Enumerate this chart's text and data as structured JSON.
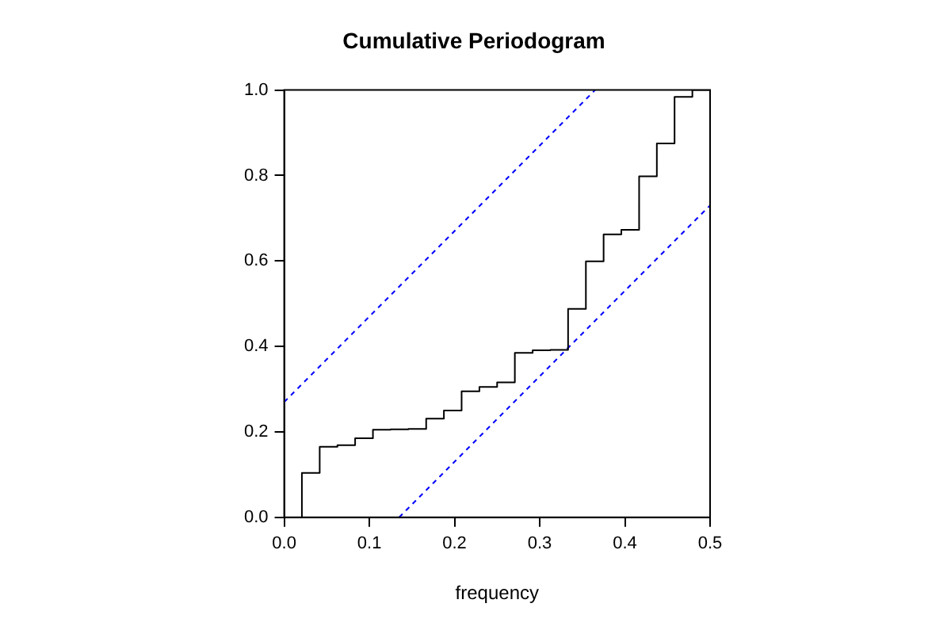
{
  "chart_data": {
    "type": "step",
    "title": "Cumulative Periodogram",
    "xlabel": "frequency",
    "xlim": [
      0,
      0.5
    ],
    "ylim": [
      0,
      1
    ],
    "xticks": [
      {
        "value": 0,
        "label": "0.0"
      },
      {
        "value": 0.1,
        "label": "0.1"
      },
      {
        "value": 0.2,
        "label": "0.2"
      },
      {
        "value": 0.3,
        "label": "0.3"
      },
      {
        "value": 0.4,
        "label": "0.4"
      },
      {
        "value": 0.5,
        "label": "0.5"
      }
    ],
    "yticks": [
      {
        "value": 0,
        "label": "0.0"
      },
      {
        "value": 0.2,
        "label": "0.2"
      },
      {
        "value": 0.4,
        "label": "0.4"
      },
      {
        "value": 0.6,
        "label": "0.6"
      },
      {
        "value": 0.8,
        "label": "0.8"
      },
      {
        "value": 1,
        "label": "1.0"
      }
    ],
    "grid": false,
    "legend": false,
    "marker": "none",
    "series": [
      {
        "color": "#000000",
        "line_style": "solid",
        "x": [
          0.0208,
          0.0417,
          0.0625,
          0.0833,
          0.1042,
          0.125,
          0.1458,
          0.1667,
          0.1875,
          0.2083,
          0.2292,
          0.25,
          0.2708,
          0.2917,
          0.3125,
          0.3333,
          0.3542,
          0.375,
          0.3958,
          0.4167,
          0.4375,
          0.4583,
          0.4792,
          0.5
        ],
        "values": [
          0,
          0.104,
          0.165,
          0.169,
          0.185,
          0.205,
          0.206,
          0.207,
          0.231,
          0.25,
          0.295,
          0.305,
          0.316,
          0.385,
          0.391,
          0.392,
          0.488,
          0.599,
          0.662,
          0.673,
          0.798,
          0.875,
          0.984,
          1.0
        ]
      },
      {
        "type": "line",
        "color": "#0000ff",
        "line_style": "dashed",
        "x": [
          0,
          0.365
        ],
        "values": [
          0.27,
          1.0
        ]
      },
      {
        "type": "line",
        "color": "#0000ff",
        "line_style": "dashed",
        "x": [
          0.135,
          0.5
        ],
        "values": [
          0,
          0.73
        ]
      }
    ]
  }
}
